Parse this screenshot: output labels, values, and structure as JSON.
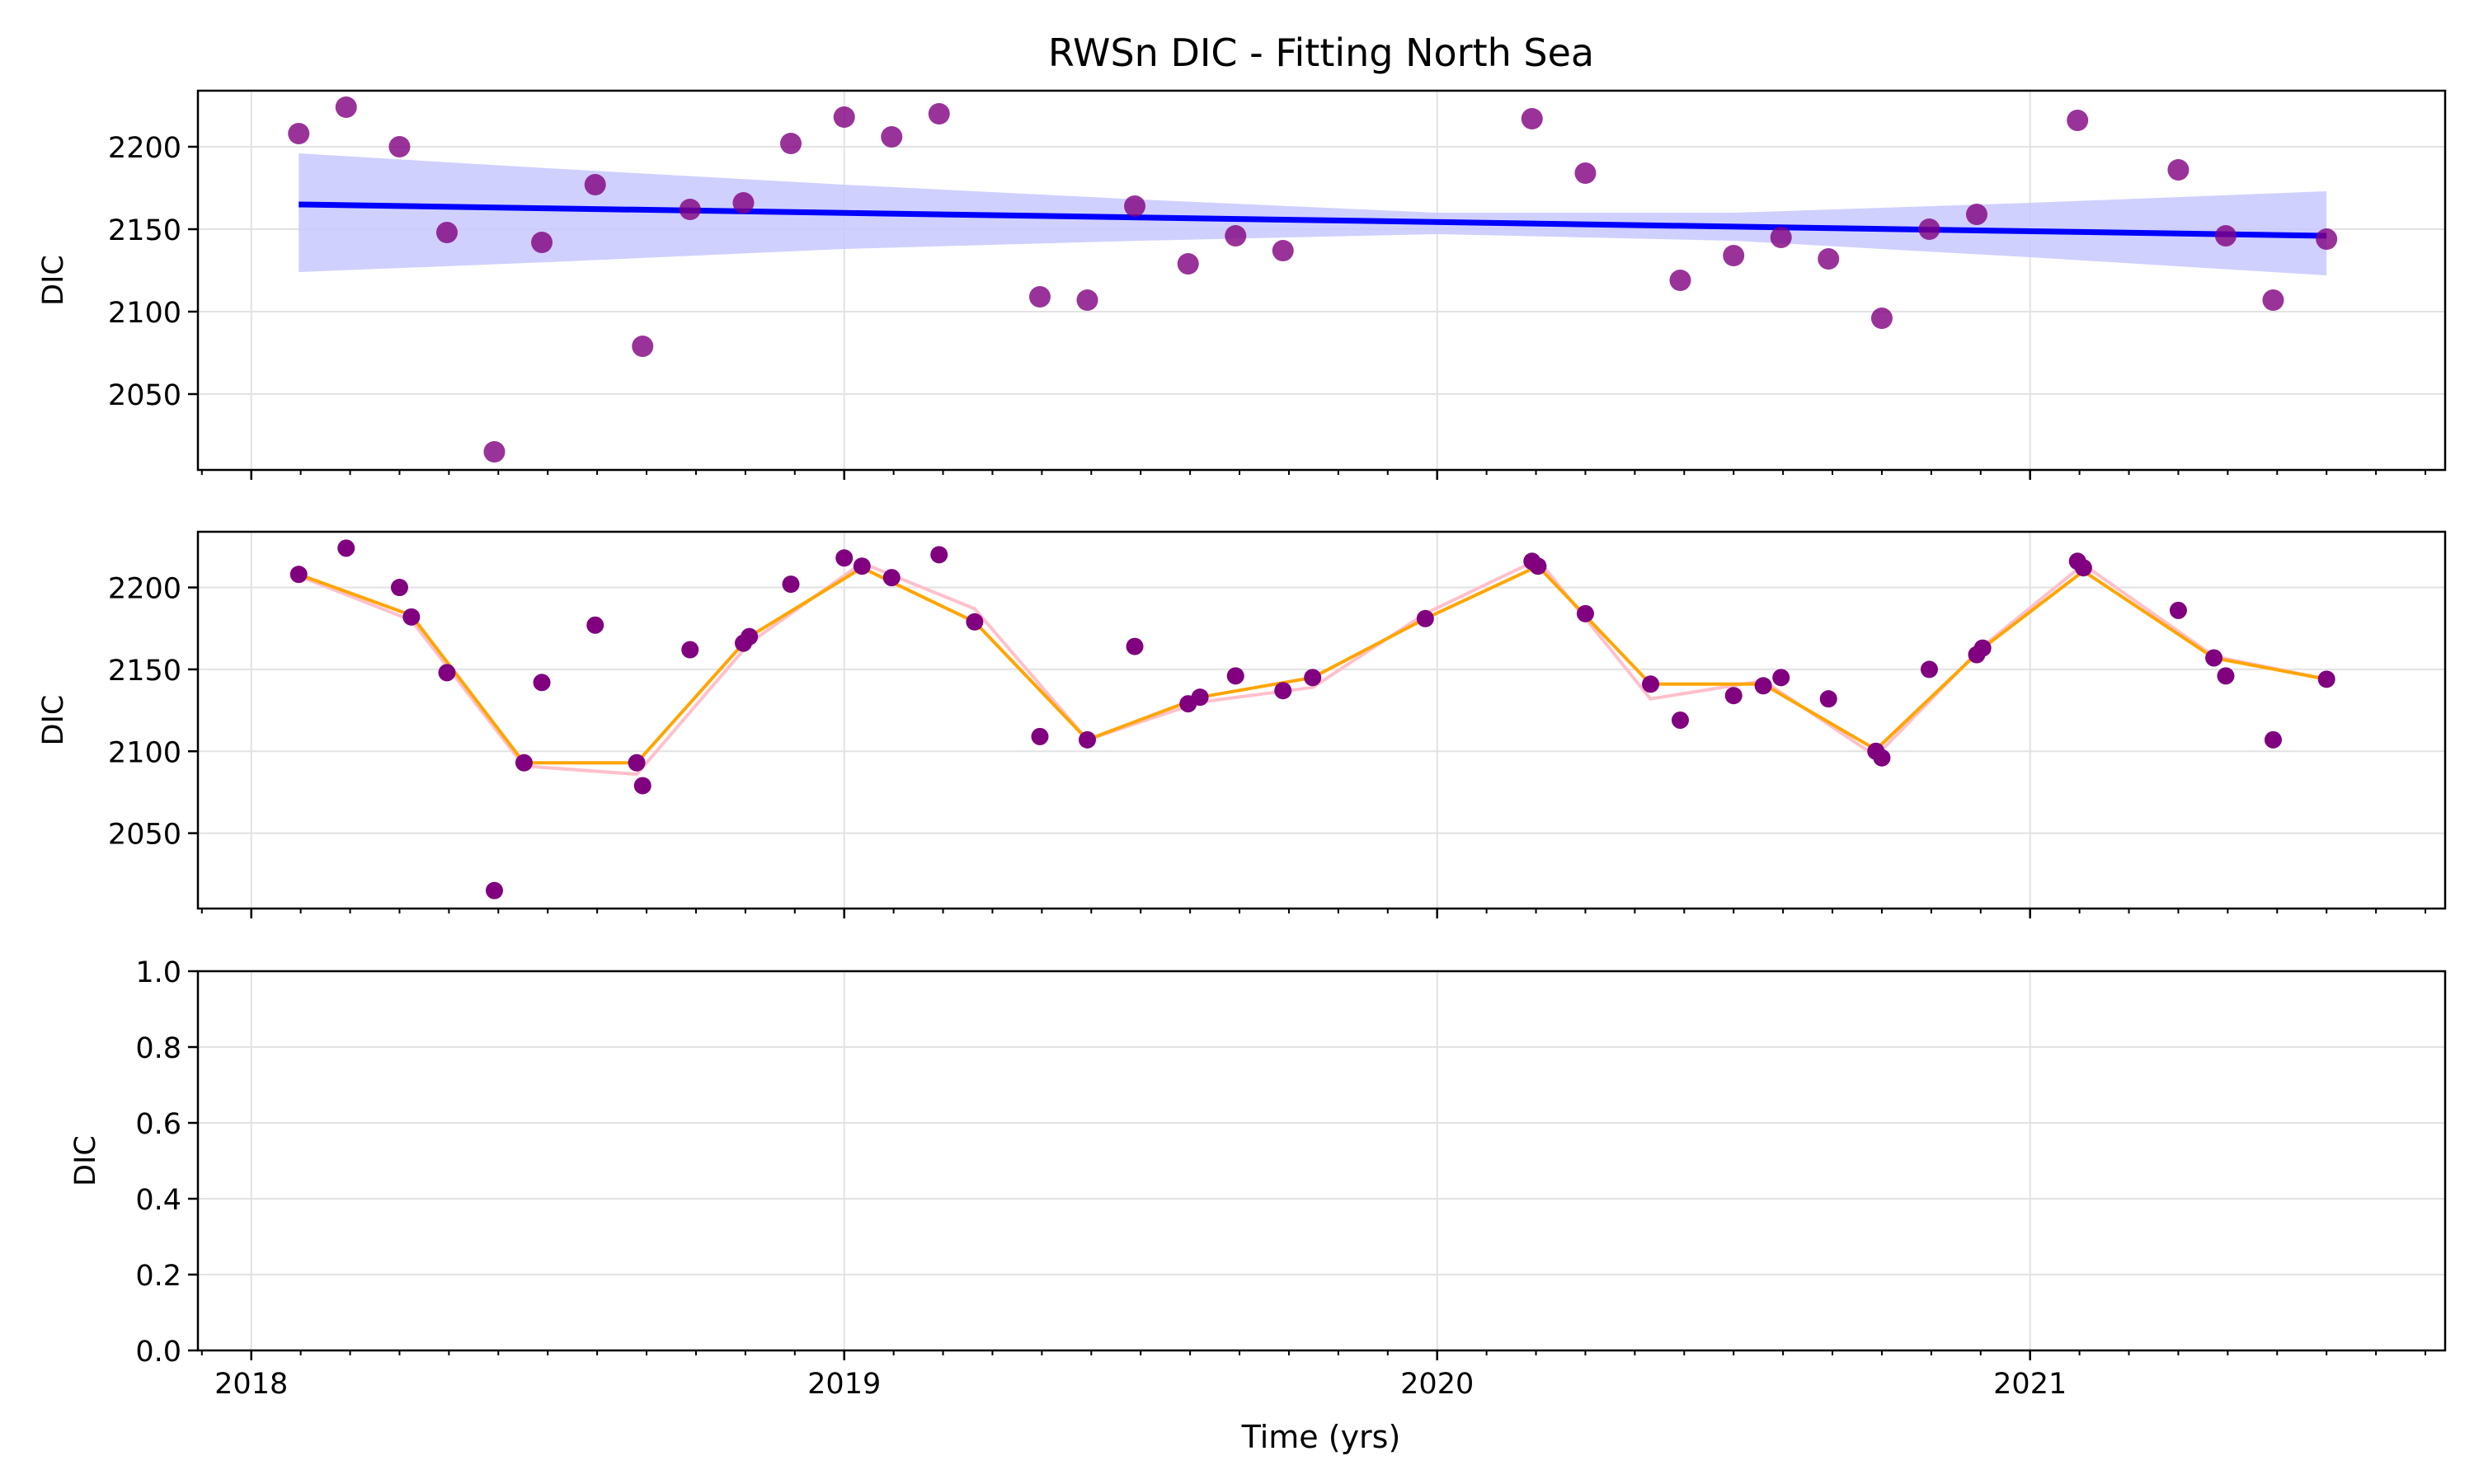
{
  "figure": {
    "title": "RWSn DIC - Fitting North Sea",
    "xlabel": "Time (yrs)"
  },
  "chart_data": [
    {
      "type": "scatter",
      "panel": "top",
      "ylabel": "DIC",
      "xlim": [
        2017.91,
        2021.7
      ],
      "ylim": [
        2004,
        2234
      ],
      "yticks": [
        2050,
        2100,
        2150,
        2200
      ],
      "xticks": [
        2018,
        2019,
        2020,
        2021
      ],
      "grid": true,
      "colors": {
        "points": "#800080",
        "trend": "#0000ff",
        "band": "#c8c8ff"
      },
      "points": [
        {
          "x": 2018.08,
          "y": 2208
        },
        {
          "x": 2018.16,
          "y": 2224
        },
        {
          "x": 2018.25,
          "y": 2200
        },
        {
          "x": 2018.33,
          "y": 2148
        },
        {
          "x": 2018.41,
          "y": 2015
        },
        {
          "x": 2018.49,
          "y": 2142
        },
        {
          "x": 2018.58,
          "y": 2177
        },
        {
          "x": 2018.66,
          "y": 2079
        },
        {
          "x": 2018.74,
          "y": 2162
        },
        {
          "x": 2018.83,
          "y": 2166
        },
        {
          "x": 2018.91,
          "y": 2202
        },
        {
          "x": 2019.0,
          "y": 2218
        },
        {
          "x": 2019.08,
          "y": 2206
        },
        {
          "x": 2019.16,
          "y": 2220
        },
        {
          "x": 2019.33,
          "y": 2109
        },
        {
          "x": 2019.41,
          "y": 2107
        },
        {
          "x": 2019.49,
          "y": 2164
        },
        {
          "x": 2019.58,
          "y": 2129
        },
        {
          "x": 2019.66,
          "y": 2146
        },
        {
          "x": 2019.74,
          "y": 2137
        },
        {
          "x": 2020.16,
          "y": 2217
        },
        {
          "x": 2020.25,
          "y": 2184
        },
        {
          "x": 2020.41,
          "y": 2119
        },
        {
          "x": 2020.5,
          "y": 2134
        },
        {
          "x": 2020.58,
          "y": 2145
        },
        {
          "x": 2020.66,
          "y": 2132
        },
        {
          "x": 2020.75,
          "y": 2096
        },
        {
          "x": 2020.83,
          "y": 2150
        },
        {
          "x": 2020.91,
          "y": 2159
        },
        {
          "x": 2021.08,
          "y": 2216
        },
        {
          "x": 2021.25,
          "y": 2186
        },
        {
          "x": 2021.33,
          "y": 2146
        },
        {
          "x": 2021.41,
          "y": 2107
        },
        {
          "x": 2021.5,
          "y": 2144
        }
      ],
      "trend": {
        "x": [
          2018.08,
          2021.5
        ],
        "y": [
          2165,
          2146
        ]
      },
      "band": {
        "x": [
          2018.08,
          2018.5,
          2019.0,
          2019.5,
          2020.0,
          2020.5,
          2021.0,
          2021.5
        ],
        "upper": [
          2196,
          2187,
          2177,
          2168,
          2160,
          2160,
          2166,
          2173
        ],
        "lower": [
          2124,
          2130,
          2138,
          2143,
          2147,
          2143,
          2133,
          2122
        ]
      }
    },
    {
      "type": "line",
      "panel": "middle",
      "ylabel": "DIC",
      "xlim": [
        2017.91,
        2021.7
      ],
      "ylim": [
        2004,
        2234
      ],
      "yticks": [
        2050,
        2100,
        2150,
        2200
      ],
      "xticks": [
        2018,
        2019,
        2020,
        2021
      ],
      "grid": true,
      "colors": {
        "points": "#800080",
        "fit_orange": "#ffa500",
        "fit_pink": "#ffc0cb"
      },
      "points": [
        {
          "x": 2018.08,
          "y": 2208
        },
        {
          "x": 2018.16,
          "y": 2224
        },
        {
          "x": 2018.25,
          "y": 2200
        },
        {
          "x": 2018.27,
          "y": 2182
        },
        {
          "x": 2018.33,
          "y": 2148
        },
        {
          "x": 2018.41,
          "y": 2015
        },
        {
          "x": 2018.46,
          "y": 2093
        },
        {
          "x": 2018.49,
          "y": 2142
        },
        {
          "x": 2018.58,
          "y": 2177
        },
        {
          "x": 2018.65,
          "y": 2093
        },
        {
          "x": 2018.66,
          "y": 2079
        },
        {
          "x": 2018.74,
          "y": 2162
        },
        {
          "x": 2018.83,
          "y": 2166
        },
        {
          "x": 2018.84,
          "y": 2170
        },
        {
          "x": 2018.91,
          "y": 2202
        },
        {
          "x": 2019.0,
          "y": 2218
        },
        {
          "x": 2019.03,
          "y": 2213
        },
        {
          "x": 2019.08,
          "y": 2206
        },
        {
          "x": 2019.16,
          "y": 2220
        },
        {
          "x": 2019.22,
          "y": 2179
        },
        {
          "x": 2019.33,
          "y": 2109
        },
        {
          "x": 2019.41,
          "y": 2107
        },
        {
          "x": 2019.49,
          "y": 2164
        },
        {
          "x": 2019.58,
          "y": 2129
        },
        {
          "x": 2019.6,
          "y": 2133
        },
        {
          "x": 2019.66,
          "y": 2146
        },
        {
          "x": 2019.74,
          "y": 2137
        },
        {
          "x": 2019.79,
          "y": 2145
        },
        {
          "x": 2019.98,
          "y": 2181
        },
        {
          "x": 2020.16,
          "y": 2216
        },
        {
          "x": 2020.17,
          "y": 2213
        },
        {
          "x": 2020.25,
          "y": 2184
        },
        {
          "x": 2020.36,
          "y": 2141
        },
        {
          "x": 2020.41,
          "y": 2119
        },
        {
          "x": 2020.5,
          "y": 2134
        },
        {
          "x": 2020.55,
          "y": 2140
        },
        {
          "x": 2020.58,
          "y": 2145
        },
        {
          "x": 2020.66,
          "y": 2132
        },
        {
          "x": 2020.74,
          "y": 2100
        },
        {
          "x": 2020.75,
          "y": 2096
        },
        {
          "x": 2020.83,
          "y": 2150
        },
        {
          "x": 2020.91,
          "y": 2159
        },
        {
          "x": 2020.92,
          "y": 2163
        },
        {
          "x": 2021.08,
          "y": 2216
        },
        {
          "x": 2021.09,
          "y": 2212
        },
        {
          "x": 2021.25,
          "y": 2186
        },
        {
          "x": 2021.31,
          "y": 2157
        },
        {
          "x": 2021.33,
          "y": 2146
        },
        {
          "x": 2021.41,
          "y": 2107
        },
        {
          "x": 2021.5,
          "y": 2144
        }
      ],
      "series": [
        {
          "x": [
            2018.08,
            2018.27,
            2018.46,
            2018.65,
            2018.84,
            2019.03,
            2019.22,
            2019.41,
            2019.6,
            2019.79,
            2019.98,
            2020.17,
            2020.36,
            2020.55,
            2020.74,
            2020.92,
            2021.09,
            2021.31,
            2021.5
          ],
          "values": [
            2208,
            2183,
            2093,
            2093,
            2170,
            2212,
            2179,
            2107,
            2133,
            2145,
            2181,
            2213,
            2141,
            2141,
            2101,
            2163,
            2210,
            2157,
            2144
          ]
        },
        {
          "x": [
            2018.08,
            2018.27,
            2018.46,
            2018.65,
            2018.84,
            2019.03,
            2019.22,
            2019.41,
            2019.6,
            2019.79,
            2019.98,
            2020.17,
            2020.36,
            2020.55,
            2020.74,
            2020.92,
            2021.09,
            2021.31,
            2021.5
          ],
          "values": [
            2207,
            2180,
            2091,
            2086,
            2166,
            2215,
            2187,
            2107,
            2130,
            2139,
            2184,
            2217,
            2132,
            2143,
            2097,
            2164,
            2214,
            2158,
            2144
          ]
        }
      ]
    },
    {
      "type": "line",
      "panel": "bottom",
      "ylabel": "DIC",
      "xlim": [
        2017.91,
        2021.7
      ],
      "ylim": [
        0,
        1
      ],
      "yticks": [
        "0.0",
        "0.2",
        "0.4",
        "0.6",
        "0.8",
        "1.0"
      ],
      "xticks": [
        2018,
        2019,
        2020,
        2021
      ],
      "grid": true
    }
  ]
}
